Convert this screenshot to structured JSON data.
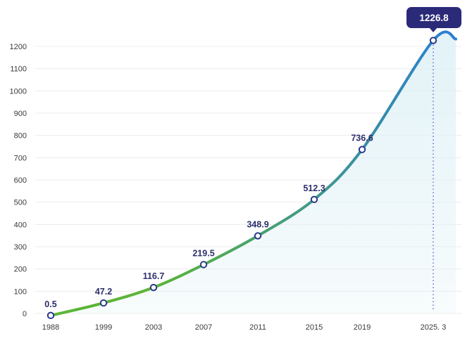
{
  "chart_data": {
    "type": "line",
    "x": [
      "1988",
      "1999",
      "2003",
      "2007",
      "2011",
      "2015",
      "2019",
      "2025. 3"
    ],
    "values": [
      0.5,
      47.2,
      116.7,
      219.5,
      348.9,
      512.3,
      736.6,
      1226.8
    ],
    "data_labels": [
      "0.5",
      "47.2",
      "116.7",
      "219.5",
      "348.9",
      "512.3",
      "736.6",
      "1226.8"
    ],
    "highlight": {
      "index": 7,
      "label": "1226.8"
    },
    "yticks": [
      "0",
      "100",
      "200",
      "300",
      "400",
      "500",
      "600",
      "700",
      "800",
      "900",
      "1000",
      "1100",
      "1200"
    ],
    "ylim": [
      0,
      1200
    ],
    "grid": true,
    "title": "",
    "xlabel": "",
    "ylabel": "",
    "colors": {
      "line_start": "#5bb536",
      "line_end": "#2a7fd4",
      "point_stroke": "#2b3a8c",
      "callout": "#2b2a78",
      "label": "#2e2f6b",
      "grid": "#ececec",
      "guide": "#6a5bd0",
      "area": "#dff1f6"
    }
  }
}
